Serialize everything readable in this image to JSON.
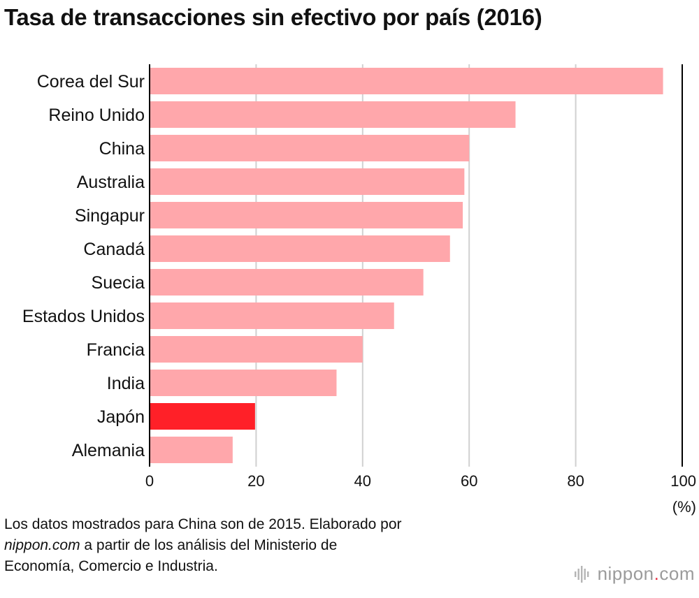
{
  "title": "Tasa de transacciones sin efectivo por país (2016)",
  "chart_data": {
    "type": "bar",
    "orientation": "horizontal",
    "title": "Tasa de transacciones sin efectivo por país (2016)",
    "categories": [
      "Corea del Sur",
      "Reino Unido",
      "China",
      "Australia",
      "Singapur",
      "Canadá",
      "Suecia",
      "Estados Unidos",
      "Francia",
      "India",
      "Japón",
      "Alemania"
    ],
    "values": [
      96.4,
      68.7,
      60.0,
      59.1,
      58.8,
      56.4,
      51.4,
      45.9,
      40.0,
      35.1,
      19.8,
      15.6
    ],
    "highlight": "Japón",
    "colors": {
      "bar": "#ffa7ab",
      "highlight": "#ff2028",
      "grid": "#d0d0d0",
      "axis": "#000000"
    },
    "xlim": [
      0,
      100
    ],
    "xticks": [
      0,
      20,
      40,
      60,
      80,
      100
    ],
    "xlabel": "(%)",
    "grid": true
  },
  "note": {
    "line1": "Los datos mostrados para China son de 2015. Elaborado por",
    "source_site": "nippon.com",
    "line2_rest": " a partir de los análisis del Ministerio de",
    "line3": "Economía, Comercio e Industria."
  },
  "logo": {
    "name": "nippon",
    "dot": ".",
    "suffix": "com"
  }
}
